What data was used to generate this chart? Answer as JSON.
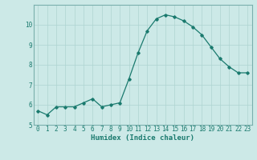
{
  "x": [
    0,
    1,
    2,
    3,
    4,
    5,
    6,
    7,
    8,
    9,
    10,
    11,
    12,
    13,
    14,
    15,
    16,
    17,
    18,
    19,
    20,
    21,
    22,
    23
  ],
  "y": [
    5.7,
    5.5,
    5.9,
    5.9,
    5.9,
    6.1,
    6.3,
    5.9,
    6.0,
    6.1,
    7.3,
    8.6,
    9.7,
    10.3,
    10.5,
    10.4,
    10.2,
    9.9,
    9.5,
    8.9,
    8.3,
    7.9,
    7.6,
    7.6
  ],
  "line_color": "#1a7a6e",
  "marker": "D",
  "marker_size": 1.8,
  "line_width": 0.9,
  "bg_color": "#cce9e7",
  "grid_color": "#aed4d1",
  "axis_bg": "#cce9e7",
  "xlabel": "Humidex (Indice chaleur)",
  "xlabel_fontsize": 6.5,
  "xlabel_color": "#1a7a6e",
  "tick_label_color": "#1a7a6e",
  "tick_fontsize": 5.5,
  "ylim": [
    5.0,
    11.0
  ],
  "xlim": [
    -0.5,
    23.5
  ],
  "yticks": [
    5,
    6,
    7,
    8,
    9,
    10
  ],
  "xticks": [
    0,
    1,
    2,
    3,
    4,
    5,
    6,
    7,
    8,
    9,
    10,
    11,
    12,
    13,
    14,
    15,
    16,
    17,
    18,
    19,
    20,
    21,
    22,
    23
  ]
}
